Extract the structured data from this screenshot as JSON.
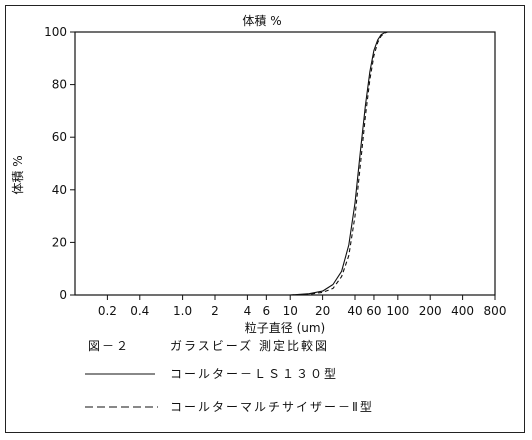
{
  "chart_data": {
    "type": "line",
    "title": "体積 %",
    "ylabel": "体積 %",
    "xlabel": "粒子直径 (um)",
    "x_scale": "log",
    "xlim": [
      0.1,
      800
    ],
    "ylim": [
      0,
      100
    ],
    "x_ticks": [
      0.2,
      0.4,
      1.0,
      2,
      4,
      6,
      10,
      20,
      40,
      60,
      100,
      200,
      400,
      800
    ],
    "x_tick_labels": [
      "0.2",
      "0.4",
      "1.0",
      "2",
      "4",
      "6",
      "10",
      "20",
      "40",
      "60",
      "100",
      "200",
      "400",
      "800"
    ],
    "y_ticks": [
      0,
      20,
      40,
      60,
      80,
      100
    ],
    "y_tick_labels": [
      "0",
      "20",
      "40",
      "60",
      "80",
      "100"
    ],
    "series": [
      {
        "name": "コールターLS130型",
        "style": "solid",
        "x": [
          10,
          15,
          20,
          25,
          30,
          35,
          40,
          45,
          50,
          55,
          60,
          65,
          70,
          75,
          80,
          100,
          200,
          800
        ],
        "y": [
          0,
          0.5,
          1.5,
          4,
          9,
          19,
          35,
          55,
          72,
          85,
          93,
          97,
          99,
          99.7,
          100,
          100,
          100,
          100
        ]
      },
      {
        "name": "コールターマルチサイザーII型",
        "style": "dashed",
        "x": [
          10,
          15,
          20,
          25,
          30,
          35,
          40,
          45,
          50,
          55,
          60,
          65,
          70,
          75,
          80,
          100,
          200,
          800
        ],
        "y": [
          0,
          0.3,
          1,
          2.5,
          7,
          15,
          30,
          50,
          68,
          82,
          91,
          96,
          98.5,
          99.5,
          100,
          100,
          100,
          100
        ]
      }
    ],
    "grid": false
  },
  "caption": {
    "figure_label": "図－２",
    "figure_title": "ガラスビーズ 測定比較図",
    "legend_solid": "コールター－ＬＳ１３０型",
    "legend_dashed": "コールターマルチサイザー－Ⅱ型"
  }
}
